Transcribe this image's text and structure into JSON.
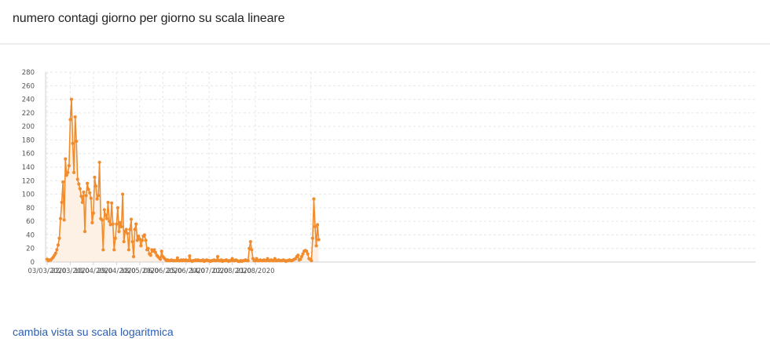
{
  "header": {
    "title": "numero contagi giorno per giorno su scala lineare"
  },
  "footer": {
    "toggle_label": "cambia vista su scala logaritmica"
  },
  "colors": {
    "line": "#f08c2e",
    "area": "#fdf1e6",
    "grid": "#e6e6e6",
    "axis": "#d0d0d0",
    "link": "#2b5fb3"
  },
  "chart_data": {
    "type": "area",
    "title": "numero contagi giorno per giorno su scala lineare",
    "xlabel": "",
    "ylabel": "",
    "ylim": [
      0,
      280
    ],
    "yticks": [
      0,
      20,
      40,
      60,
      80,
      100,
      120,
      140,
      160,
      180,
      200,
      220,
      240,
      260,
      280
    ],
    "start_date": "03/03/2020",
    "xtick_labels": [
      "03/03/2020",
      "22/03/2020",
      "10/04/2020",
      "29/04/2020",
      "18/05/2020",
      "06/06/2020",
      "25/06/2020",
      "14/07/2020",
      "02/08/2020",
      "21/08/2020"
    ],
    "grid": true,
    "legend": "none",
    "series": [
      {
        "values": [
          4,
          2,
          3,
          3,
          5,
          7,
          10,
          13,
          18,
          25,
          35,
          64,
          88,
          118,
          62,
          152,
          128,
          132,
          142,
          210,
          240,
          175,
          132,
          214,
          178,
          122,
          115,
          108,
          97,
          88,
          103,
          45,
          98,
          116,
          107,
          102,
          94,
          58,
          72,
          125,
          112,
          93,
          98,
          147,
          64,
          62,
          18,
          77,
          69,
          64,
          88,
          60,
          55,
          87,
          56,
          18,
          35,
          56,
          80,
          45,
          58,
          52,
          100,
          30,
          45,
          48,
          42,
          18,
          48,
          63,
          30,
          8,
          48,
          56,
          32,
          38,
          34,
          24,
          32,
          38,
          40,
          32,
          18,
          20,
          12,
          10,
          18,
          16,
          18,
          14,
          10,
          8,
          6,
          4,
          16,
          8,
          6,
          4,
          2,
          3,
          2,
          2,
          3,
          2,
          2,
          2,
          2,
          6,
          2,
          2,
          3,
          2,
          3,
          2,
          3,
          2,
          2,
          9,
          2,
          1,
          2,
          2,
          3,
          2,
          3,
          2,
          2,
          2,
          3,
          1,
          2,
          3,
          2,
          2,
          1,
          2,
          2,
          3,
          2,
          2,
          8,
          2,
          2,
          3,
          1,
          2,
          2,
          3,
          2,
          1,
          2,
          2,
          5,
          2,
          2,
          3,
          2,
          1,
          1,
          2,
          1,
          2,
          2,
          3,
          2,
          2,
          20,
          30,
          18,
          5,
          2,
          2,
          5,
          2,
          2,
          3,
          2,
          2,
          3,
          2,
          2,
          5,
          2,
          2,
          3,
          2,
          2,
          5,
          2,
          2,
          3,
          2,
          2,
          2,
          3,
          2,
          1,
          2,
          2,
          3,
          2,
          2,
          3,
          4,
          5,
          8,
          10,
          3,
          4,
          8,
          12,
          16,
          17,
          16,
          12,
          5,
          4,
          2,
          35,
          93,
          52,
          24,
          55,
          33
        ]
      }
    ]
  }
}
